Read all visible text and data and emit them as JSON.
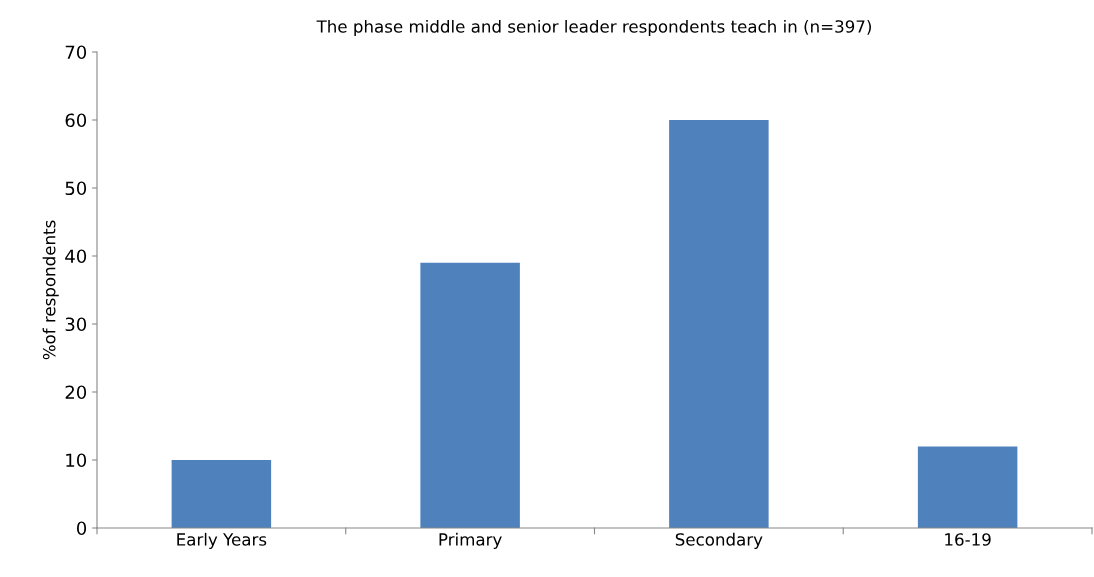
{
  "chart_data": {
    "type": "bar",
    "title": "The phase middle and senior leader respondents teach in (n=397)",
    "ylabel": "%of respondents",
    "categories": [
      "Early Years",
      "Primary",
      "Secondary",
      "16-19"
    ],
    "values": [
      10,
      39,
      60,
      12
    ],
    "color": "#4f81bd",
    "ylim": [
      0,
      70
    ],
    "yticks": [
      0,
      10,
      20,
      30,
      40,
      50,
      60,
      70
    ],
    "grid": false,
    "legend": false
  }
}
